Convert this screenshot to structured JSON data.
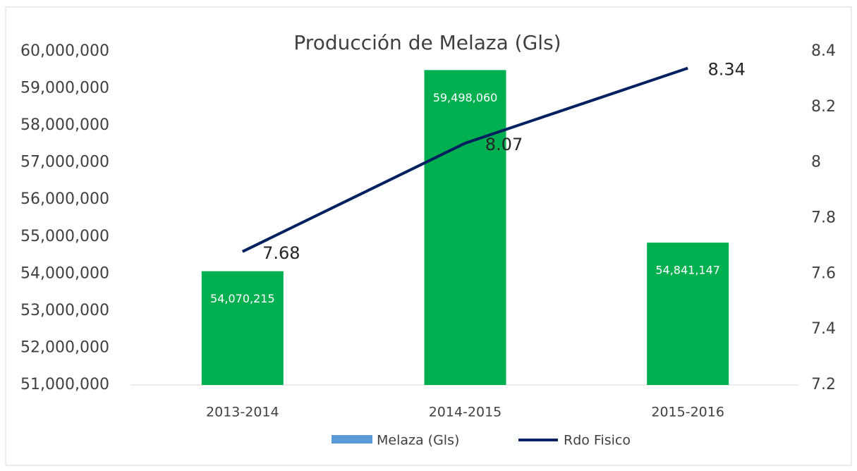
{
  "chart_data": {
    "type": "bar",
    "title": "Producción de Melaza (Gls)",
    "categories": [
      "2013-2014",
      "2014-2015",
      "2015-2016"
    ],
    "series": [
      {
        "name": "Melaza (Gls)",
        "type": "bar",
        "color": "#00b050",
        "legend_color": "#5b9bd5",
        "values": [
          54070215,
          59498060,
          54841147
        ],
        "value_labels": [
          "54,070,215",
          "59,498,060",
          "54,841,147"
        ]
      },
      {
        "name": "Rdo Fisico",
        "type": "line",
        "axis": "y2",
        "color": "#002060",
        "values": [
          7.68,
          8.07,
          8.34
        ]
      }
    ],
    "ylim": [
      51000000,
      60000000
    ],
    "yticks": [
      {
        "value": 51000000,
        "label": "51,000,000"
      },
      {
        "value": 52000000,
        "label": "52,000,000"
      },
      {
        "value": 53000000,
        "label": "53,000,000"
      },
      {
        "value": 54000000,
        "label": "54,000,000"
      },
      {
        "value": 55000000,
        "label": "55,000,000"
      },
      {
        "value": 56000000,
        "label": "56,000,000"
      },
      {
        "value": 57000000,
        "label": "57,000,000"
      },
      {
        "value": 58000000,
        "label": "58,000,000"
      },
      {
        "value": 59000000,
        "label": "59,000,000"
      },
      {
        "value": 60000000,
        "label": "60,000,000"
      }
    ],
    "y2lim": [
      7.2,
      8.4
    ],
    "y2ticks": [
      7.2,
      7.4,
      7.6,
      7.8,
      8,
      8.2,
      8.4
    ],
    "grid": false,
    "legend": "bottom"
  }
}
